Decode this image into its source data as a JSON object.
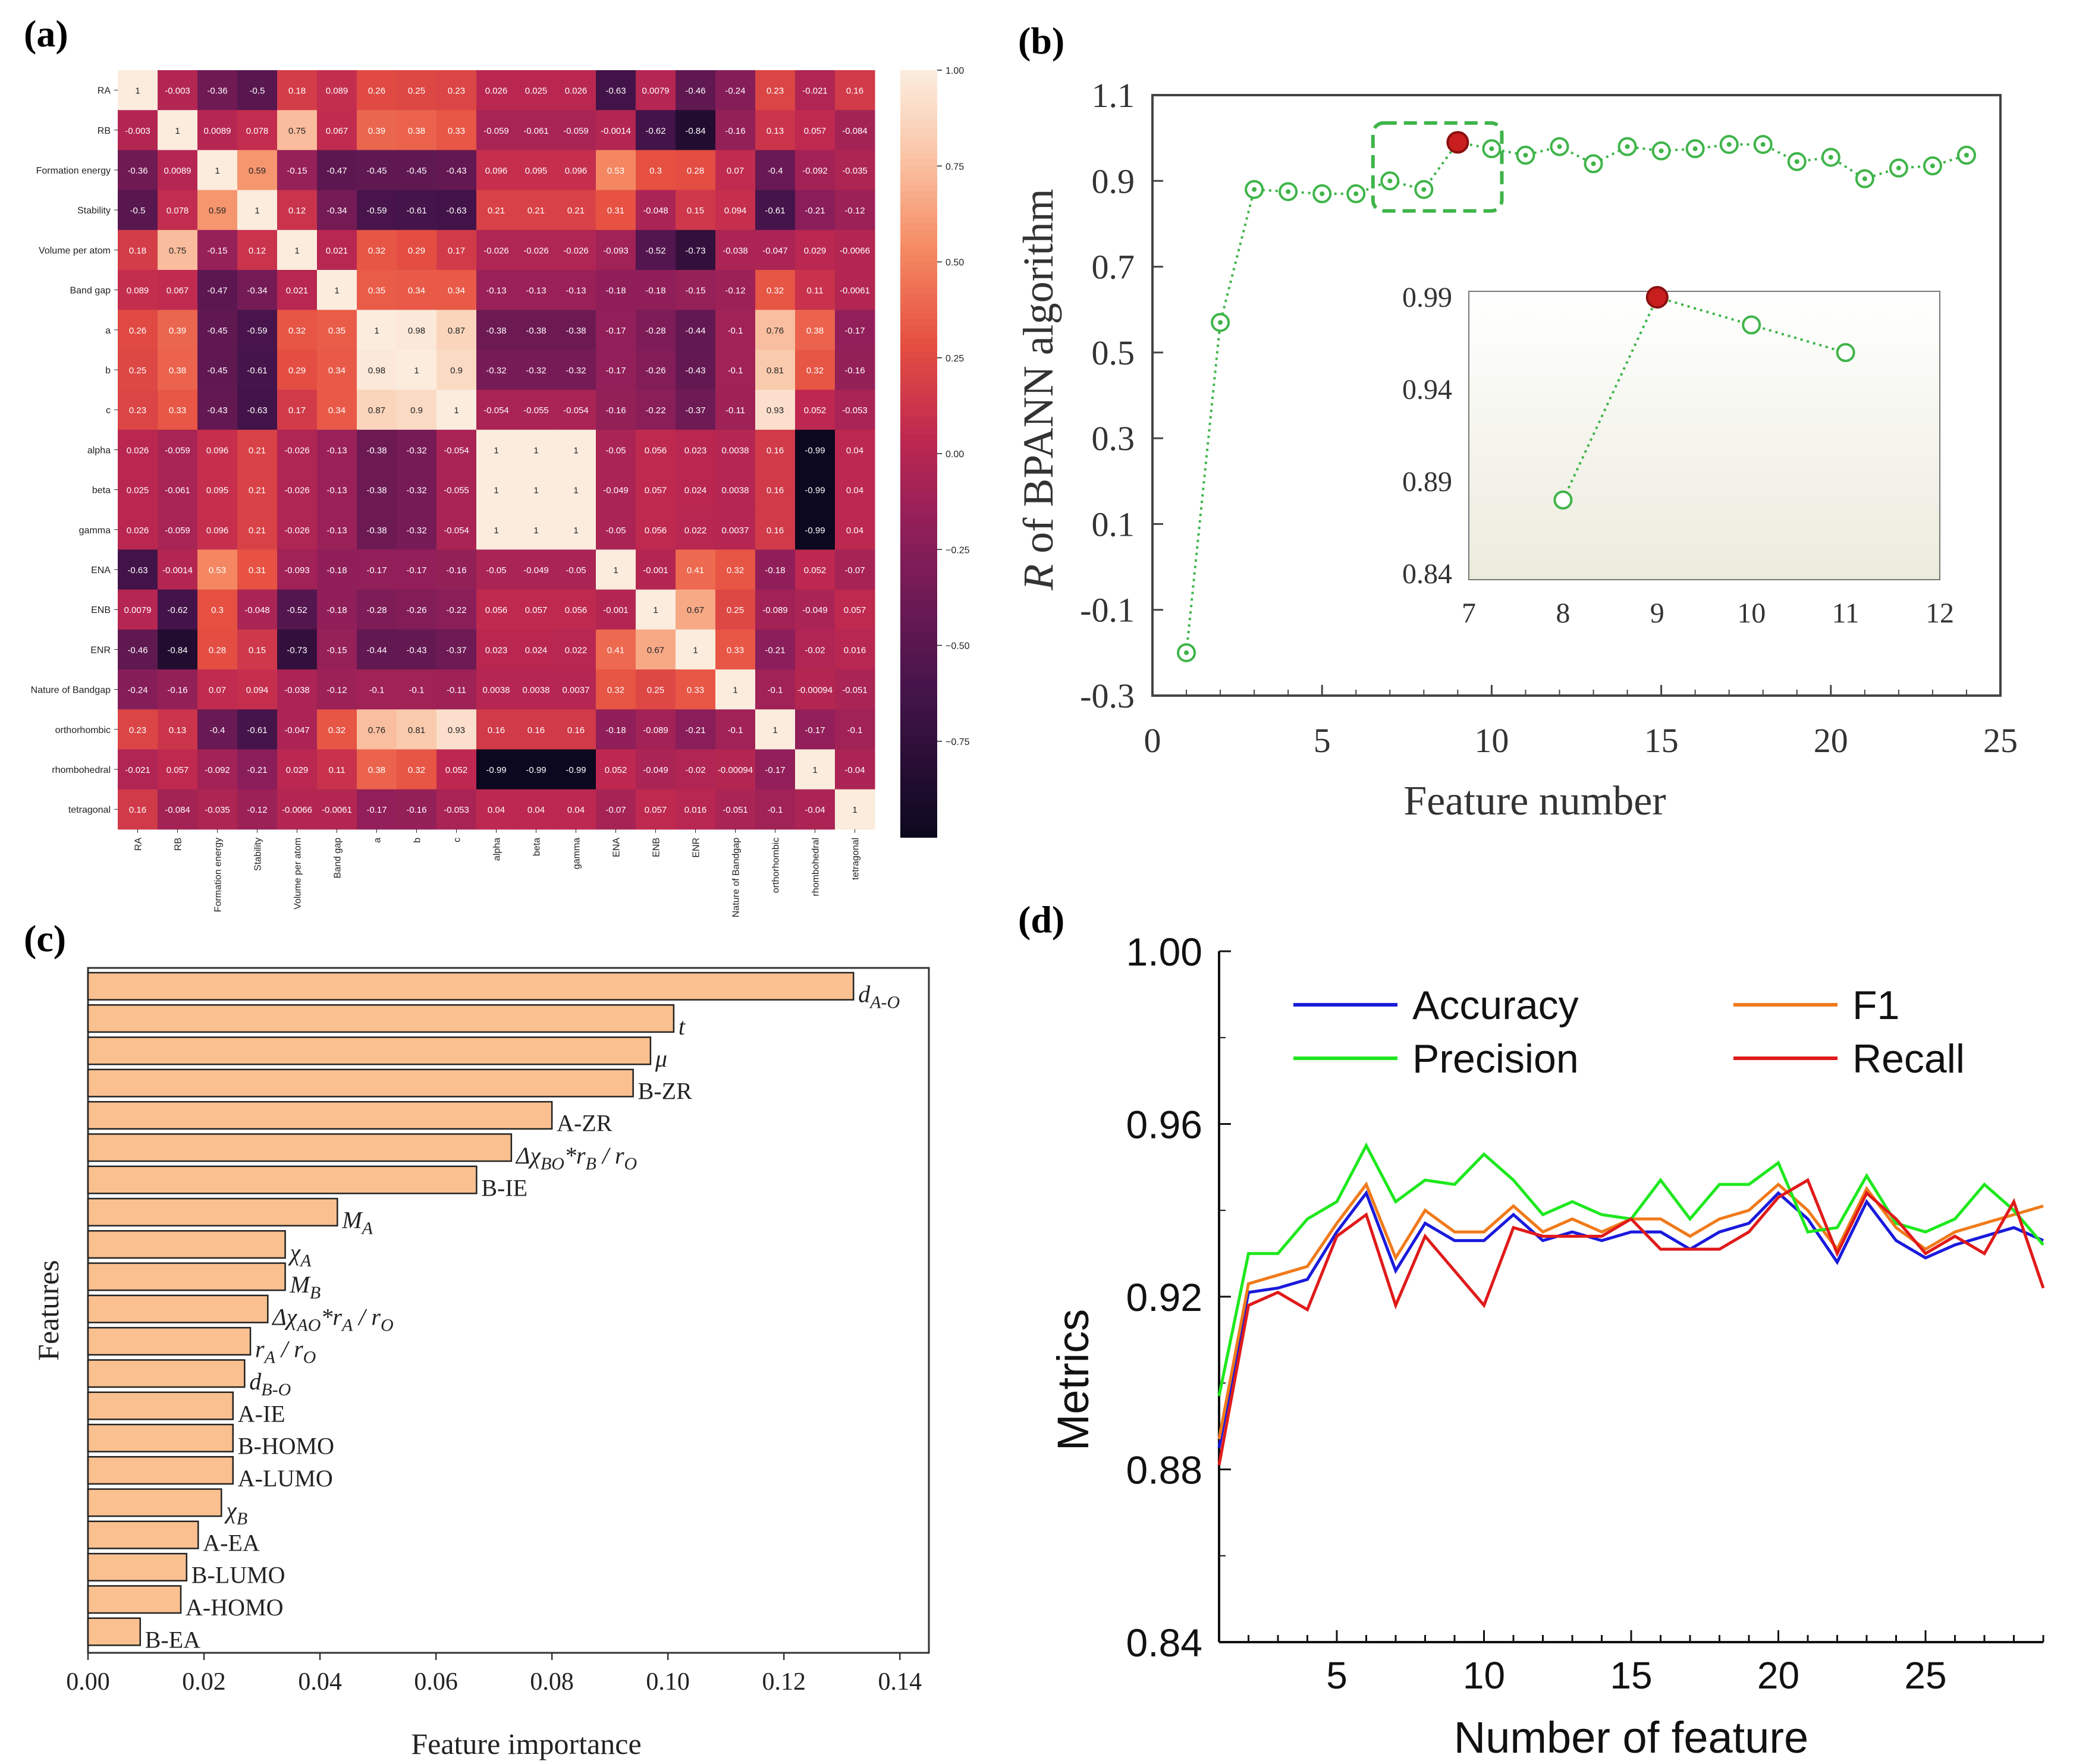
{
  "chart_data": [
    {
      "type": "heatmap",
      "panel_label": "(a)",
      "labels": [
        "RA",
        "RB",
        "Formation energy",
        "Stability",
        "Volume per atom",
        "Band gap",
        "a",
        "b",
        "c",
        "alpha",
        "beta",
        "gamma",
        "ENA",
        "ENB",
        "ENR",
        "Nature of Bandgap",
        "orthorhombic",
        "rhombohedral",
        "tetragonal"
      ],
      "matrix": [
        [
          "1",
          "-0.003",
          "-0.36",
          "-0.5",
          "0.18",
          "0.089",
          "0.26",
          "0.25",
          "0.23",
          "0.026",
          "0.025",
          "0.026",
          "-0.63",
          "0.0079",
          "-0.46",
          "-0.24",
          "0.23",
          "-0.021",
          "0.16"
        ],
        [
          "-0.003",
          "1",
          "0.0089",
          "0.078",
          "0.75",
          "0.067",
          "0.39",
          "0.38",
          "0.33",
          "-0.059",
          "-0.061",
          "-0.059",
          "-0.0014",
          "-0.62",
          "-0.84",
          "-0.16",
          "0.13",
          "0.057",
          "-0.084"
        ],
        [
          "-0.36",
          "0.0089",
          "1",
          "0.59",
          "-0.15",
          "-0.47",
          "-0.45",
          "-0.45",
          "-0.43",
          "0.096",
          "0.095",
          "0.096",
          "0.53",
          "0.3",
          "0.28",
          "0.07",
          "-0.4",
          "-0.092",
          "-0.035"
        ],
        [
          "-0.5",
          "0.078",
          "0.59",
          "1",
          "0.12",
          "-0.34",
          "-0.59",
          "-0.61",
          "-0.63",
          "0.21",
          "0.21",
          "0.21",
          "0.31",
          "-0.048",
          "0.15",
          "0.094",
          "-0.61",
          "-0.21",
          "-0.12"
        ],
        [
          "0.18",
          "0.75",
          "-0.15",
          "0.12",
          "1",
          "0.021",
          "0.32",
          "0.29",
          "0.17",
          "-0.026",
          "-0.026",
          "-0.026",
          "-0.093",
          "-0.52",
          "-0.73",
          "-0.038",
          "-0.047",
          "0.029",
          "-0.0066"
        ],
        [
          "0.089",
          "0.067",
          "-0.47",
          "-0.34",
          "0.021",
          "1",
          "0.35",
          "0.34",
          "0.34",
          "-0.13",
          "-0.13",
          "-0.13",
          "-0.18",
          "-0.18",
          "-0.15",
          "-0.12",
          "0.32",
          "0.11",
          "-0.0061"
        ],
        [
          "0.26",
          "0.39",
          "-0.45",
          "-0.59",
          "0.32",
          "0.35",
          "1",
          "0.98",
          "0.87",
          "-0.38",
          "-0.38",
          "-0.38",
          "-0.17",
          "-0.28",
          "-0.44",
          "-0.1",
          "0.76",
          "0.38",
          "-0.17"
        ],
        [
          "0.25",
          "0.38",
          "-0.45",
          "-0.61",
          "0.29",
          "0.34",
          "0.98",
          "1",
          "0.9",
          "-0.32",
          "-0.32",
          "-0.32",
          "-0.17",
          "-0.26",
          "-0.43",
          "-0.1",
          "0.81",
          "0.32",
          "-0.16"
        ],
        [
          "0.23",
          "0.33",
          "-0.43",
          "-0.63",
          "0.17",
          "0.34",
          "0.87",
          "0.9",
          "1",
          "-0.054",
          "-0.055",
          "-0.054",
          "-0.16",
          "-0.22",
          "-0.37",
          "-0.11",
          "0.93",
          "0.052",
          "-0.053"
        ],
        [
          "0.026",
          "-0.059",
          "0.096",
          "0.21",
          "-0.026",
          "-0.13",
          "-0.38",
          "-0.32",
          "-0.054",
          "1",
          "1",
          "1",
          "-0.05",
          "0.056",
          "0.023",
          "0.0038",
          "0.16",
          "-0.99",
          "0.04"
        ],
        [
          "0.025",
          "-0.061",
          "0.095",
          "0.21",
          "-0.026",
          "-0.13",
          "-0.38",
          "-0.32",
          "-0.055",
          "1",
          "1",
          "1",
          "-0.049",
          "0.057",
          "0.024",
          "0.0038",
          "0.16",
          "-0.99",
          "0.04"
        ],
        [
          "0.026",
          "-0.059",
          "0.096",
          "0.21",
          "-0.026",
          "-0.13",
          "-0.38",
          "-0.32",
          "-0.054",
          "1",
          "1",
          "1",
          "-0.05",
          "0.056",
          "0.022",
          "0.0037",
          "0.16",
          "-0.99",
          "0.04"
        ],
        [
          "-0.63",
          "-0.0014",
          "0.53",
          "0.31",
          "-0.093",
          "-0.18",
          "-0.17",
          "-0.17",
          "-0.16",
          "-0.05",
          "-0.049",
          "-0.05",
          "1",
          "-0.001",
          "0.41",
          "0.32",
          "-0.18",
          "0.052",
          "-0.07"
        ],
        [
          "0.0079",
          "-0.62",
          "0.3",
          "-0.048",
          "-0.52",
          "-0.18",
          "-0.28",
          "-0.26",
          "-0.22",
          "0.056",
          "0.057",
          "0.056",
          "-0.001",
          "1",
          "0.67",
          "0.25",
          "-0.089",
          "-0.049",
          "0.057"
        ],
        [
          "-0.46",
          "-0.84",
          "0.28",
          "0.15",
          "-0.73",
          "-0.15",
          "-0.44",
          "-0.43",
          "-0.37",
          "0.023",
          "0.024",
          "0.022",
          "0.41",
          "0.67",
          "1",
          "0.33",
          "-0.21",
          "-0.02",
          "0.016"
        ],
        [
          "-0.24",
          "-0.16",
          "0.07",
          "0.094",
          "-0.038",
          "-0.12",
          "-0.1",
          "-0.1",
          "-0.11",
          "0.0038",
          "0.0038",
          "0.0037",
          "0.32",
          "0.25",
          "0.33",
          "1",
          "-0.1",
          "-0.00094",
          "-0.051"
        ],
        [
          "0.23",
          "0.13",
          "-0.4",
          "-0.61",
          "-0.047",
          "0.32",
          "0.76",
          "0.81",
          "0.93",
          "0.16",
          "0.16",
          "0.16",
          "-0.18",
          "-0.089",
          "-0.21",
          "-0.1",
          "1",
          "-0.17",
          "-0.1"
        ],
        [
          "-0.021",
          "0.057",
          "-0.092",
          "-0.21",
          "0.029",
          "0.11",
          "0.38",
          "0.32",
          "0.052",
          "-0.99",
          "-0.99",
          "-0.99",
          "0.052",
          "-0.049",
          "-0.02",
          "-0.00094",
          "-0.17",
          "1",
          "-0.04"
        ],
        [
          "0.16",
          "-0.084",
          "-0.035",
          "-0.12",
          "-0.0066",
          "-0.0061",
          "-0.17",
          "-0.16",
          "-0.053",
          "0.04",
          "0.04",
          "0.04",
          "-0.07",
          "0.057",
          "0.016",
          "-0.051",
          "-0.1",
          "-0.04",
          "1"
        ]
      ],
      "colorbar_ticks": [
        "1.00",
        "0.75",
        "0.50",
        "0.25",
        "0.00",
        "−0.25",
        "−0.50",
        "−0.75"
      ],
      "colorbar_values": [
        1.0,
        0.75,
        0.5,
        0.25,
        0.0,
        -0.25,
        -0.5,
        -0.75
      ],
      "vmin": -1.0,
      "vmax": 1.0
    },
    {
      "type": "line",
      "panel_label": "(b)",
      "xlabel": "Feature number",
      "ylabel_main": "R",
      "ylabel_rest": " of BPANN algorithm",
      "xlim": [
        0,
        25
      ],
      "ylim": [
        -0.3,
        1.1
      ],
      "xticks": [
        0,
        5,
        10,
        15,
        20,
        25
      ],
      "yticks": [
        "1.1",
        "0.9",
        "0.7",
        "0.5",
        "0.3",
        "0.1",
        "-0.1",
        "-0.3"
      ],
      "ytick_values": [
        1.1,
        0.9,
        0.7,
        0.5,
        0.3,
        0.1,
        -0.1,
        -0.3
      ],
      "x": [
        1,
        2,
        3,
        4,
        5,
        6,
        7,
        8,
        9,
        10,
        11,
        12,
        13,
        14,
        15,
        16,
        17,
        18,
        19,
        20,
        21,
        22,
        23,
        24
      ],
      "y": [
        -0.2,
        0.57,
        0.88,
        0.875,
        0.87,
        0.87,
        0.9,
        0.88,
        0.99,
        0.975,
        0.96,
        0.98,
        0.94,
        0.98,
        0.97,
        0.975,
        0.985,
        0.985,
        0.945,
        0.955,
        0.905,
        0.93,
        0.935,
        0.96
      ],
      "highlight_index": 8,
      "inset": {
        "xlim": [
          7,
          12
        ],
        "ylim": [
          0.84,
          0.99
        ],
        "xticks": [
          "7",
          "8",
          "9",
          "10",
          "11",
          "12"
        ],
        "xtick_values": [
          7,
          8,
          9,
          10,
          11,
          12
        ],
        "yticks": [
          "0.99",
          "0.94",
          "0.89",
          "0.84"
        ],
        "ytick_values": [
          0.99,
          0.94,
          0.89,
          0.84
        ],
        "x": [
          8,
          9,
          10,
          11
        ],
        "y": [
          0.88,
          0.99,
          0.975,
          0.96
        ],
        "highlight_index": 1
      }
    },
    {
      "type": "bar",
      "orientation": "horizontal",
      "panel_label": "(c)",
      "xlabel": "Feature importance",
      "ylabel": "Features",
      "xlim": [
        0,
        0.145
      ],
      "xticks": [
        "0.00",
        "0.02",
        "0.04",
        "0.06",
        "0.08",
        "0.10",
        "0.12",
        "0.14"
      ],
      "xtick_values": [
        0,
        0.02,
        0.04,
        0.06,
        0.08,
        0.1,
        0.12,
        0.14
      ],
      "categories": [
        {
          "base": "d",
          "sub": "A-O",
          "italic": true
        },
        {
          "base": "t",
          "sub": "",
          "italic": true
        },
        {
          "base": "μ",
          "sub": "",
          "italic": true
        },
        {
          "base": "B-ZR",
          "sub": "",
          "italic": false
        },
        {
          "base": "A-ZR",
          "sub": "",
          "italic": false
        },
        {
          "base": "Δχ",
          "sub": "BO",
          "post": "*r",
          "sub2": "B",
          "post2": " / r",
          "sub3": "O",
          "italic": true
        },
        {
          "base": "B-IE",
          "sub": "",
          "italic": false
        },
        {
          "base": "M",
          "sub": "A",
          "italic": true
        },
        {
          "base": "χ",
          "sub": "A",
          "italic": true
        },
        {
          "base": "M",
          "sub": "B",
          "italic": true
        },
        {
          "base": "Δχ",
          "sub": "AO",
          "post": "*r",
          "sub2": "A",
          "post2": " / r",
          "sub3": "O",
          "italic": true
        },
        {
          "base": "r",
          "sub": "A",
          "post": " / r",
          "sub2": "O",
          "italic": true
        },
        {
          "base": "d",
          "sub": "B-O",
          "italic": true
        },
        {
          "base": "A-IE",
          "sub": "",
          "italic": false
        },
        {
          "base": "B-HOMO",
          "sub": "",
          "italic": false
        },
        {
          "base": "A-LUMO",
          "sub": "",
          "italic": false
        },
        {
          "base": "χ",
          "sub": "B",
          "italic": true
        },
        {
          "base": "A-EA",
          "sub": "",
          "italic": false
        },
        {
          "base": "B-LUMO",
          "sub": "",
          "italic": false
        },
        {
          "base": "A-HOMO",
          "sub": "",
          "italic": false
        },
        {
          "base": "B-EA",
          "sub": "",
          "italic": false
        }
      ],
      "values": [
        0.132,
        0.101,
        0.097,
        0.094,
        0.08,
        0.073,
        0.067,
        0.043,
        0.034,
        0.034,
        0.031,
        0.028,
        0.027,
        0.025,
        0.025,
        0.025,
        0.023,
        0.019,
        0.017,
        0.016,
        0.009
      ]
    },
    {
      "type": "line",
      "panel_label": "(d)",
      "xlabel": "Number of feature",
      "ylabel": "Metrics",
      "xlim": [
        1,
        29
      ],
      "ylim": [
        0.84,
        1.0
      ],
      "xticks": [
        5,
        10,
        15,
        20,
        25
      ],
      "yticks": [
        "1.00",
        "0.96",
        "0.92",
        "0.88",
        "0.84"
      ],
      "ytick_values": [
        1.0,
        0.96,
        0.92,
        0.88,
        0.84
      ],
      "x": [
        1,
        2,
        3,
        4,
        5,
        6,
        7,
        8,
        9,
        10,
        11,
        12,
        13,
        14,
        15,
        16,
        17,
        18,
        19,
        20,
        21,
        22,
        23,
        24,
        25,
        26,
        27,
        28,
        29
      ],
      "series": [
        {
          "name": "Accuracy",
          "color": "#1a1adc",
          "values": [
            0.885,
            0.921,
            0.922,
            0.924,
            0.935,
            0.944,
            0.926,
            0.937,
            0.933,
            0.933,
            0.939,
            0.933,
            0.935,
            0.933,
            0.935,
            0.935,
            0.931,
            0.935,
            0.937,
            0.944,
            0.938,
            0.928,
            0.942,
            0.933,
            0.929,
            0.932,
            0.934,
            0.936,
            0.933
          ]
        },
        {
          "name": "F1",
          "color": "#f07a1a",
          "values": [
            0.887,
            0.923,
            0.925,
            0.927,
            0.937,
            0.946,
            0.929,
            0.94,
            0.935,
            0.935,
            0.941,
            0.935,
            0.938,
            0.935,
            0.938,
            0.938,
            0.934,
            0.938,
            0.94,
            0.946,
            0.94,
            0.931,
            0.945,
            0.936,
            0.931,
            0.935,
            0.937,
            0.939,
            0.941
          ]
        },
        {
          "name": "Precision",
          "color": "#1ee81e",
          "values": [
            0.897,
            0.93,
            0.93,
            0.938,
            0.942,
            0.955,
            0.942,
            0.947,
            0.946,
            0.953,
            0.947,
            0.939,
            0.942,
            0.939,
            0.938,
            0.947,
            0.938,
            0.946,
            0.946,
            0.951,
            0.935,
            0.936,
            0.948,
            0.937,
            0.935,
            0.938,
            0.946,
            0.94,
            0.932
          ]
        },
        {
          "name": "Recall",
          "color": "#e01a1a",
          "values": [
            0.881,
            0.918,
            0.921,
            0.917,
            0.934,
            0.939,
            0.918,
            0.934,
            0.926,
            0.918,
            0.936,
            0.934,
            0.934,
            0.934,
            0.938,
            0.931,
            0.931,
            0.931,
            0.935,
            0.943,
            0.947,
            0.93,
            0.944,
            0.938,
            0.93,
            0.934,
            0.93,
            0.942,
            0.922
          ]
        }
      ]
    }
  ]
}
